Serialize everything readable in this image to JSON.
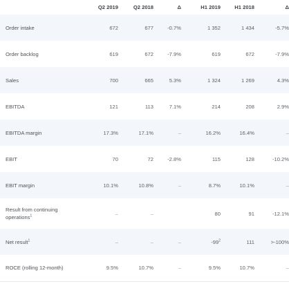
{
  "table": {
    "columns": [
      "Q2 2019",
      "Q2 2018",
      "Δ",
      "H1 2019",
      "H1 2018",
      "Δ"
    ],
    "rows": [
      {
        "label": "Order intake",
        "sup": "",
        "q2_2019": "672",
        "q2_2018": "677",
        "q2_delta": "-0.7%",
        "h1_2019": "1 352",
        "h1_2019_sup": "",
        "h1_2018": "1 434",
        "h1_delta": "-5.7%"
      },
      {
        "label": "Order backlog",
        "sup": "",
        "q2_2019": "619",
        "q2_2018": "672",
        "q2_delta": "-7.9%",
        "h1_2019": "619",
        "h1_2019_sup": "",
        "h1_2018": "672",
        "h1_delta": "-7.9%"
      },
      {
        "label": "Sales",
        "sup": "",
        "q2_2019": "700",
        "q2_2018": "665",
        "q2_delta": "5.3%",
        "h1_2019": "1 324",
        "h1_2019_sup": "",
        "h1_2018": "1 269",
        "h1_delta": "4.3%"
      },
      {
        "label": "EBITDA",
        "sup": "",
        "q2_2019": "121",
        "q2_2018": "113",
        "q2_delta": "7.1%",
        "h1_2019": "214",
        "h1_2019_sup": "",
        "h1_2018": "208",
        "h1_delta": "2.9%"
      },
      {
        "label": "EBITDA margin",
        "sup": "",
        "q2_2019": "17.3%",
        "q2_2018": "17.1%",
        "q2_delta": "–",
        "h1_2019": "16.2%",
        "h1_2019_sup": "",
        "h1_2018": "16.4%",
        "h1_delta": "–"
      },
      {
        "label": "EBIT",
        "sup": "",
        "q2_2019": "70",
        "q2_2018": "72",
        "q2_delta": "-2.8%",
        "h1_2019": "115",
        "h1_2019_sup": "",
        "h1_2018": "128",
        "h1_delta": "-10.2%"
      },
      {
        "label": "EBIT margin",
        "sup": "",
        "q2_2019": "10.1%",
        "q2_2018": "10.8%",
        "q2_delta": "–",
        "h1_2019": "8.7%",
        "h1_2019_sup": "",
        "h1_2018": "10.1%",
        "h1_delta": "–"
      },
      {
        "label": "Result from continuing operations",
        "sup": "1",
        "q2_2019": "–",
        "q2_2018": "–",
        "q2_delta": "",
        "h1_2019": "80",
        "h1_2019_sup": "",
        "h1_2018": "91",
        "h1_delta": "-12.1%"
      },
      {
        "label": "Net result",
        "sup": "1",
        "q2_2019": "–",
        "q2_2018": "–",
        "q2_delta": "–",
        "h1_2019": "-99",
        "h1_2019_sup": "2",
        "h1_2018": "111",
        "h1_delta": ">-100%"
      },
      {
        "label": "ROCE (rolling 12-month)",
        "sup": "",
        "q2_2019": "9.5%",
        "q2_2018": "10.7%",
        "q2_delta": "–",
        "h1_2019": "9.5%",
        "h1_2019_sup": "",
        "h1_2018": "10.7%",
        "h1_delta": "–"
      }
    ]
  }
}
